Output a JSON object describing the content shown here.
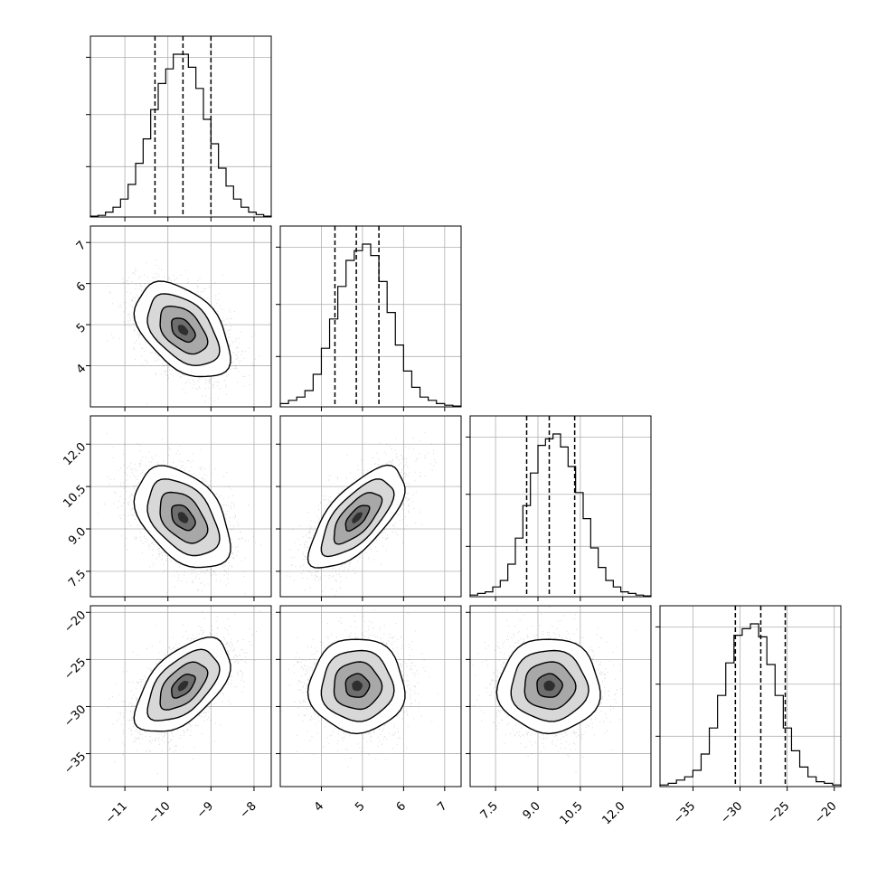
{
  "chart_data": {
    "type": "corner",
    "grid": true,
    "parameters": [
      {
        "range": [
          -11.8,
          -7.6
        ],
        "ticks": [
          -11,
          -10,
          -9,
          -8
        ],
        "tick_labels": [
          "−11",
          "−10",
          "−9",
          "−8"
        ],
        "quantiles": [
          -10.3,
          -9.65,
          -9.0
        ],
        "hist": [
          0.005,
          0.01,
          0.03,
          0.06,
          0.11,
          0.2,
          0.33,
          0.48,
          0.66,
          0.82,
          0.91,
          1.0,
          1.0,
          0.92,
          0.79,
          0.6,
          0.45,
          0.3,
          0.19,
          0.11,
          0.06,
          0.03,
          0.015,
          0.005
        ]
      },
      {
        "range": [
          3.0,
          7.4
        ],
        "ticks": [
          4,
          5,
          6,
          7
        ],
        "tick_labels": [
          "4",
          "5",
          "6",
          "7"
        ],
        "quantiles": [
          4.33,
          4.85,
          5.4
        ],
        "hist": [
          0.02,
          0.04,
          0.06,
          0.1,
          0.2,
          0.36,
          0.54,
          0.74,
          0.9,
          0.96,
          1.0,
          0.93,
          0.77,
          0.58,
          0.38,
          0.22,
          0.12,
          0.06,
          0.04,
          0.02,
          0.01,
          0.005
        ]
      },
      {
        "range": [
          6.6,
          13.0
        ],
        "ticks": [
          7.5,
          9.0,
          10.5,
          12.0
        ],
        "tick_labels": [
          "7.5",
          "9.0",
          "10.5",
          "12.0"
        ],
        "quantiles": [
          8.6,
          9.4,
          10.3
        ],
        "hist": [
          0.01,
          0.02,
          0.03,
          0.06,
          0.1,
          0.2,
          0.36,
          0.56,
          0.76,
          0.93,
          0.97,
          1.0,
          0.92,
          0.8,
          0.64,
          0.48,
          0.3,
          0.18,
          0.1,
          0.06,
          0.03,
          0.02,
          0.01,
          0.005
        ]
      },
      {
        "range": [
          -38.5,
          -19.3
        ],
        "ticks": [
          -35,
          -30,
          -25,
          -20
        ],
        "tick_labels": [
          "−35",
          "−30",
          "−25",
          "−20"
        ],
        "quantiles": [
          -30.5,
          -27.8,
          -25.2
        ],
        "hist": [
          0.01,
          0.02,
          0.04,
          0.06,
          0.1,
          0.2,
          0.36,
          0.56,
          0.76,
          0.93,
          0.97,
          1.0,
          0.92,
          0.75,
          0.56,
          0.36,
          0.22,
          0.12,
          0.06,
          0.03,
          0.02,
          0.01
        ]
      }
    ],
    "pairs": [
      {
        "row": 1,
        "col": 0,
        "mean": [
          -9.65,
          4.87
        ],
        "std": [
          0.55,
          0.58
        ],
        "corr": -0.45
      },
      {
        "row": 2,
        "col": 0,
        "mean": [
          -9.65,
          9.4
        ],
        "std": [
          0.55,
          0.9
        ],
        "corr": -0.42
      },
      {
        "row": 2,
        "col": 1,
        "mean": [
          4.87,
          9.4
        ],
        "std": [
          0.58,
          0.9
        ],
        "corr": 0.68
      },
      {
        "row": 3,
        "col": 0,
        "mean": [
          -9.65,
          -27.8
        ],
        "std": [
          0.55,
          2.5
        ],
        "corr": 0.55
      },
      {
        "row": 3,
        "col": 1,
        "mean": [
          4.87,
          -27.8
        ],
        "std": [
          0.58,
          2.5
        ],
        "corr": 0.0
      },
      {
        "row": 3,
        "col": 2,
        "mean": [
          9.4,
          -27.8
        ],
        "std": [
          0.9,
          2.5
        ],
        "corr": 0.0
      }
    ],
    "contour_levels_sigma": [
      0.5,
      1.0,
      1.5,
      2.0
    ]
  }
}
